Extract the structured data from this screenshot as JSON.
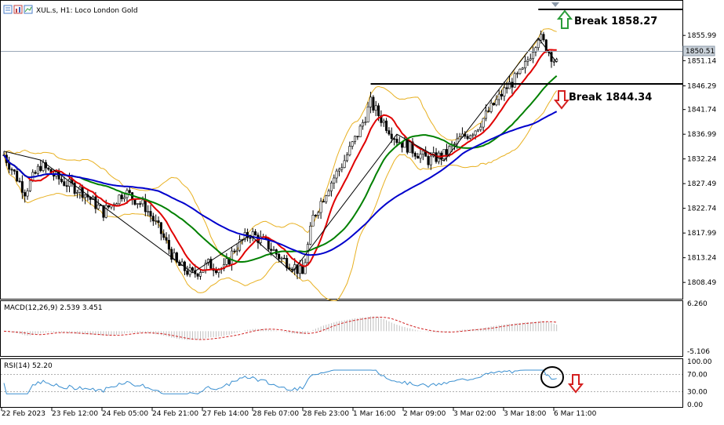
{
  "header": {
    "symbol_title": "XUL.s, H1:  Loco London Gold"
  },
  "current_price": "1850.51",
  "chart_data": [
    {
      "type": "candlestick",
      "title": "XUL.s, H1:  Loco London Gold",
      "ylim": [
        1805.5,
        1862.5
      ],
      "y_ticks": [
        "1855.99",
        "1851.14",
        "1846.29",
        "1841.74",
        "1836.99",
        "1832.24",
        "1827.49",
        "1822.74",
        "1817.99",
        "1813.24",
        "1808.49"
      ],
      "x_ticks": [
        "22 Feb 2023",
        "23 Feb 12:00",
        "24 Feb 05:00",
        "24 Feb 21:00",
        "27 Feb 14:00",
        "28 Feb 07:00",
        "28 Feb 23:00",
        "1 Mar 16:00",
        "2 Mar 09:00",
        "3 Mar 02:00",
        "3 Mar 18:00",
        "6 Mar 11:00"
      ],
      "approx_close_path": [
        [
          0,
          1833
        ],
        [
          8,
          1826
        ],
        [
          14,
          1831
        ],
        [
          22,
          1828
        ],
        [
          30,
          1826
        ],
        [
          38,
          1822
        ],
        [
          46,
          1826
        ],
        [
          54,
          1823
        ],
        [
          60,
          1818
        ],
        [
          66,
          1812
        ],
        [
          72,
          1810
        ],
        [
          78,
          1812
        ],
        [
          84,
          1811
        ],
        [
          88,
          1815
        ],
        [
          94,
          1818
        ],
        [
          100,
          1816
        ],
        [
          106,
          1813
        ],
        [
          110,
          1812
        ],
        [
          114,
          1810
        ],
        [
          118,
          1821
        ],
        [
          124,
          1827
        ],
        [
          130,
          1832
        ],
        [
          136,
          1838
        ],
        [
          140,
          1843
        ],
        [
          144,
          1840
        ],
        [
          150,
          1836
        ],
        [
          156,
          1834
        ],
        [
          162,
          1832
        ],
        [
          168,
          1833
        ],
        [
          174,
          1836
        ],
        [
          180,
          1838
        ],
        [
          186,
          1842
        ],
        [
          192,
          1846
        ],
        [
          198,
          1849
        ],
        [
          204,
          1856
        ],
        [
          208,
          1853
        ],
        [
          211,
          1850.5
        ]
      ],
      "levels": [
        {
          "label": "Break 1858.27",
          "value": 1858.27,
          "arrow": "up"
        },
        {
          "label": "Break 1844.34",
          "value": 1844.34,
          "arrow": "down"
        }
      ],
      "indicators": [
        "SMA red",
        "SMA green",
        "SMA blue",
        "Bollinger Bands",
        "ZigZag"
      ]
    },
    {
      "type": "histogram",
      "indicator": "MACD",
      "title": "MACD(12,26,9) 2.539 3.451",
      "y_ticks": [
        "6.260",
        "-5.106"
      ],
      "ylim": [
        -5.106,
        6.26
      ]
    },
    {
      "type": "line",
      "indicator": "RSI",
      "title": "RSI(14) 52.20",
      "y_ticks": [
        "100.00",
        "70.00",
        "30.00",
        "0.00"
      ],
      "ylim": [
        0,
        100
      ],
      "levels": [
        70,
        30
      ],
      "annotation": "circled last value with down arrow"
    }
  ],
  "colors": {
    "sma_fast": "#e00000",
    "sma_mid": "#008000",
    "sma_slow": "#0000cc",
    "bollinger": "#e8b020",
    "zigzag": "#000000",
    "macd_hist": "#c0c0c0",
    "macd_signal": "#d02020",
    "rsi": "#3a8fd0",
    "arrow_up": "#2a9d3a",
    "arrow_down": "#d42020"
  }
}
